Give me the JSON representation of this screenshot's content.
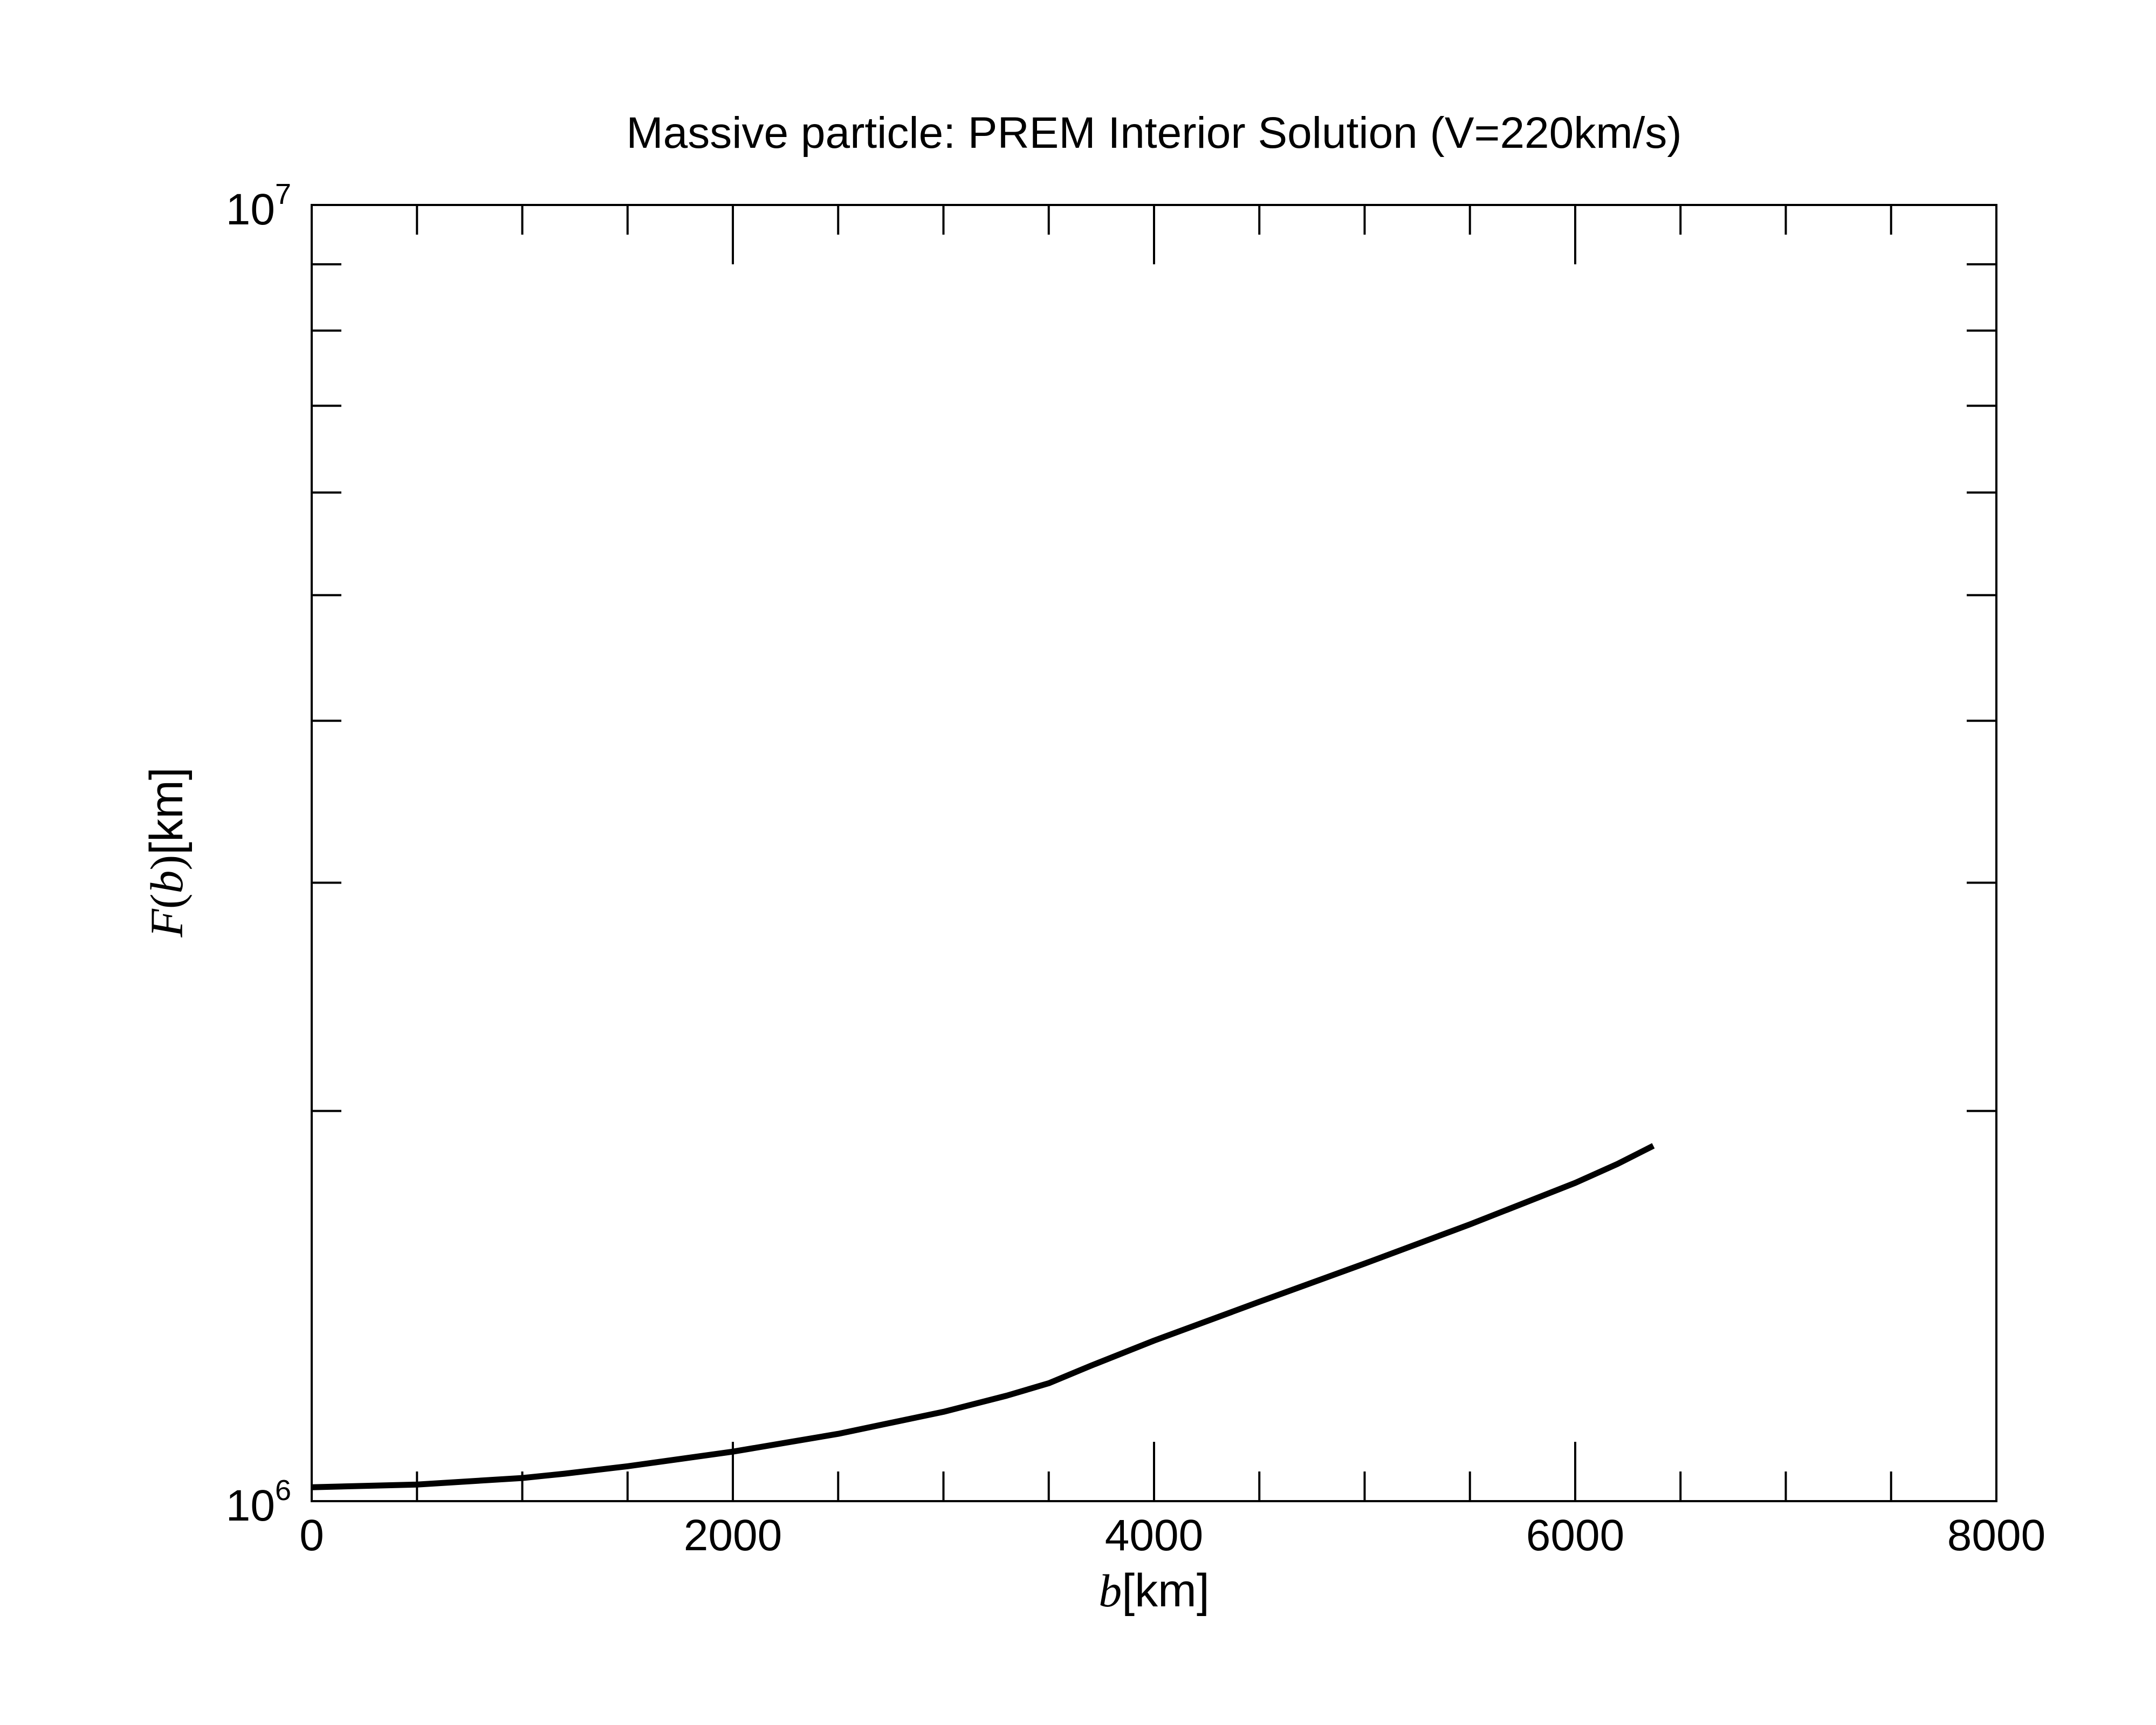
{
  "chart_data": {
    "type": "line",
    "title": "Massive particle: PREM Interior Solution (V=220km/s)",
    "xlabel": {
      "var": "b",
      "unit": "[km]"
    },
    "ylabel": {
      "func": "F",
      "var": "b",
      "unit": "[km]"
    },
    "xlim": [
      0,
      8000
    ],
    "ylim": [
      1000000,
      10000000
    ],
    "yscale": "log",
    "grid": false,
    "x_ticks": [
      "0",
      "2000",
      "4000",
      "6000",
      "8000"
    ],
    "y_ticks": [
      {
        "base": "10",
        "exp": "6"
      },
      {
        "base": "10",
        "exp": "7"
      }
    ],
    "line_color": "#000000",
    "series": [
      {
        "x": [
          0,
          500,
          1000,
          1200,
          1500,
          2000,
          2500,
          3000,
          3300,
          3500,
          3700,
          4000,
          4500,
          5000,
          5500,
          6000,
          6200,
          6371
        ],
        "y": [
          1025000,
          1030000,
          1042000,
          1050000,
          1064000,
          1092000,
          1127000,
          1172000,
          1206000,
          1233000,
          1272000,
          1330000,
          1425000,
          1525000,
          1635000,
          1760000,
          1820000,
          1880000
        ]
      }
    ]
  }
}
